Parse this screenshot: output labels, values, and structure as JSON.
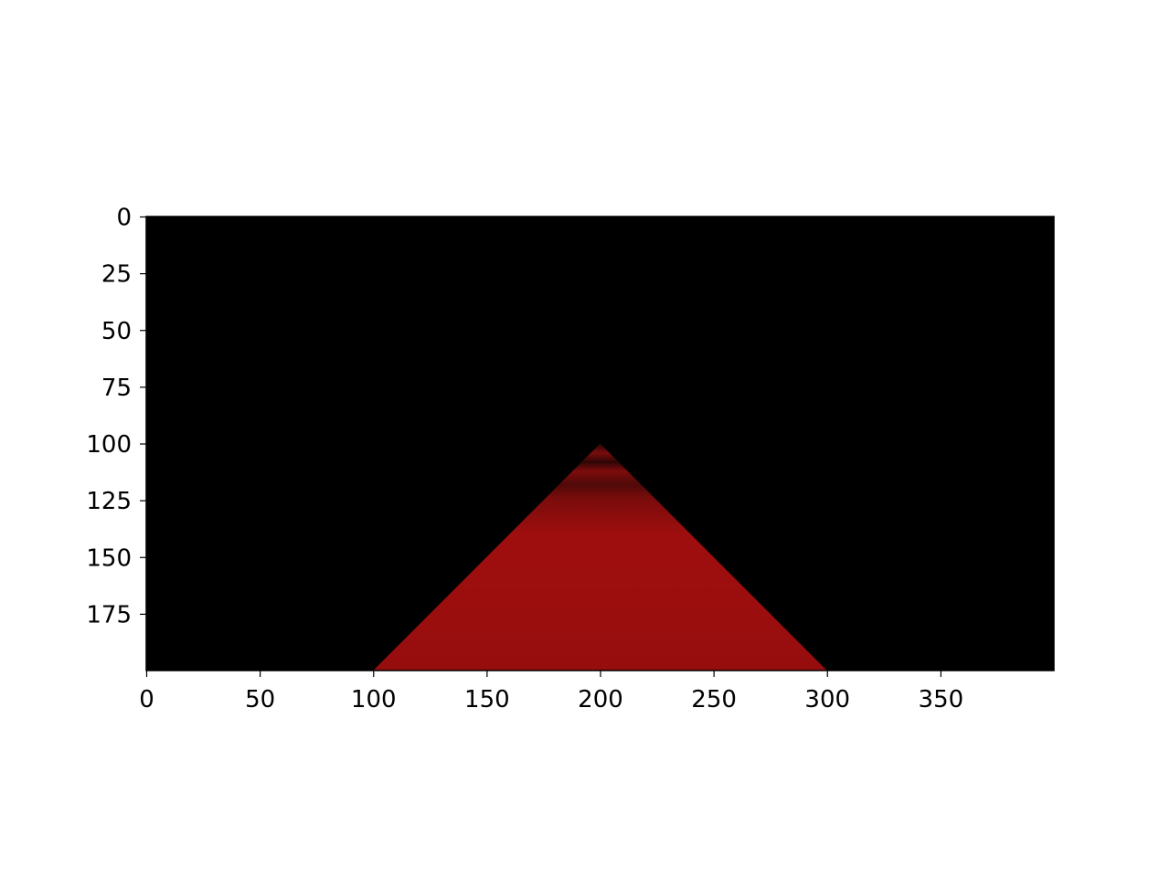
{
  "chart_data": {
    "type": "image",
    "x": {
      "ticks": [
        0,
        50,
        100,
        150,
        200,
        250,
        300,
        350
      ],
      "tick_labels": [
        "0",
        "50",
        "100",
        "150",
        "200",
        "250",
        "300",
        "350"
      ],
      "extent": [
        0,
        400
      ]
    },
    "y": {
      "ticks": [
        0,
        25,
        50,
        75,
        100,
        125,
        150,
        175
      ],
      "tick_labels": [
        "0",
        "25",
        "50",
        "75",
        "100",
        "125",
        "150",
        "175"
      ],
      "extent": [
        0,
        200
      ],
      "inverted": true
    },
    "background_color": "#000000",
    "region": {
      "shape": "triangle",
      "vertices": [
        [
          200,
          100
        ],
        [
          100,
          200
        ],
        [
          300,
          200
        ]
      ],
      "fill_color": "#9e0e0e",
      "dark_bands_y": [
        108,
        123
      ]
    }
  }
}
